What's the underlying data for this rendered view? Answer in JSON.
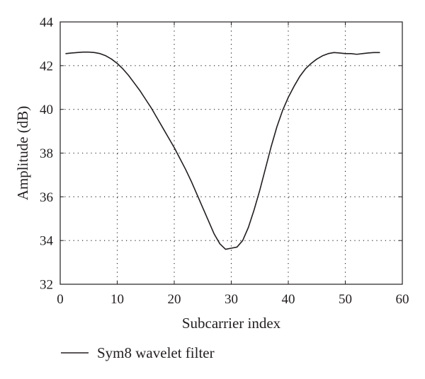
{
  "chart_data": {
    "type": "line",
    "xlabel": "Subcarrier index",
    "ylabel": "Amplitude (dB)",
    "xlim": [
      0,
      60
    ],
    "ylim": [
      32,
      44
    ],
    "xticks": [
      0,
      10,
      20,
      30,
      40,
      50,
      60
    ],
    "yticks": [
      32,
      34,
      36,
      38,
      40,
      42,
      44
    ],
    "grid": true,
    "legend_placement": "below",
    "series": [
      {
        "name": "Sym8 wavelet filter",
        "color": "#231f20",
        "x": [
          1,
          2,
          3,
          4,
          5,
          6,
          7,
          8,
          9,
          10,
          11,
          12,
          13,
          14,
          15,
          16,
          17,
          18,
          19,
          20,
          21,
          22,
          23,
          24,
          25,
          26,
          27,
          28,
          29,
          30,
          31,
          32,
          33,
          34,
          35,
          36,
          37,
          38,
          39,
          40,
          41,
          42,
          43,
          44,
          45,
          46,
          47,
          48,
          49,
          50,
          51,
          52,
          53,
          54,
          55,
          56
        ],
        "y": [
          42.55,
          42.58,
          42.6,
          42.62,
          42.62,
          42.6,
          42.55,
          42.45,
          42.3,
          42.1,
          41.85,
          41.55,
          41.2,
          40.85,
          40.45,
          40.05,
          39.6,
          39.15,
          38.7,
          38.25,
          37.75,
          37.25,
          36.7,
          36.1,
          35.5,
          34.9,
          34.3,
          33.85,
          33.6,
          33.65,
          33.7,
          34.0,
          34.6,
          35.4,
          36.3,
          37.3,
          38.3,
          39.2,
          39.95,
          40.55,
          41.05,
          41.5,
          41.85,
          42.1,
          42.3,
          42.45,
          42.55,
          42.6,
          42.58,
          42.55,
          42.55,
          42.52,
          42.55,
          42.58,
          42.6,
          42.6
        ]
      }
    ]
  }
}
